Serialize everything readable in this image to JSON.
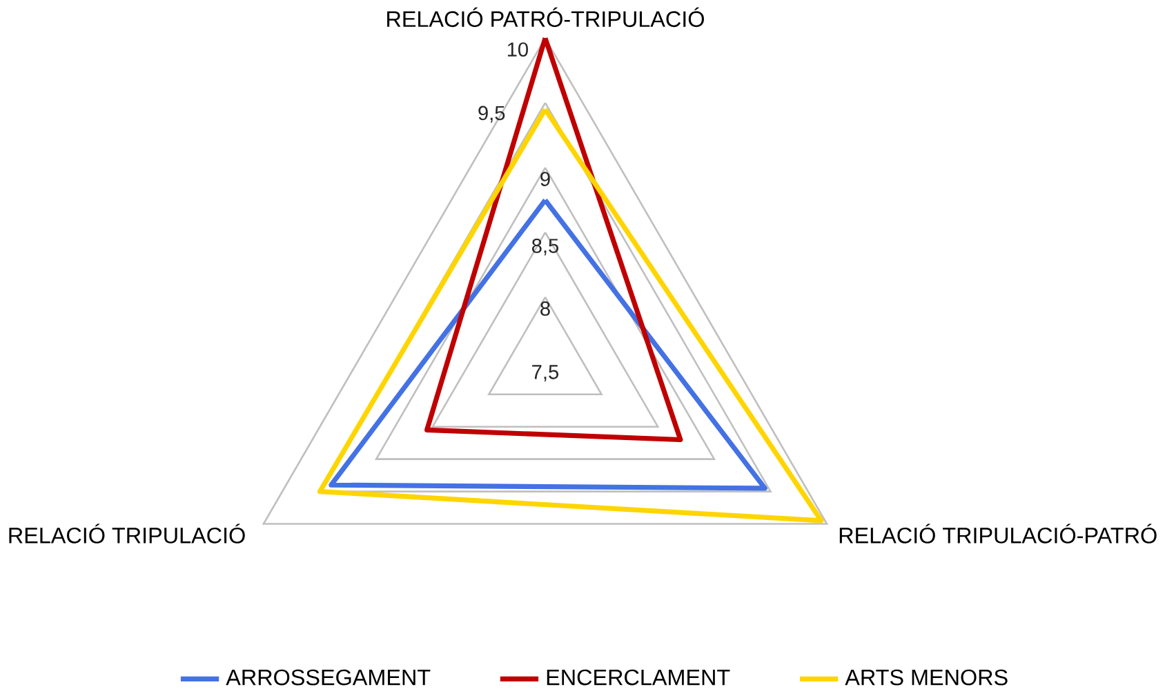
{
  "chart_data": {
    "type": "radar",
    "categories": [
      "RELACIÓ PATRÓ-TRIPULACIÓ",
      "RELACIÓ TRIPULACIÓ-PATRÓ",
      "RELACIÓ TRIPULACIÓ"
    ],
    "ylim": [
      7.5,
      10
    ],
    "yticks": [
      {
        "value": 7.5,
        "label": "7,5"
      },
      {
        "value": 8,
        "label": "8"
      },
      {
        "value": 8.5,
        "label": "8,5"
      },
      {
        "value": 9,
        "label": "9"
      },
      {
        "value": 9.5,
        "label": "9,5"
      },
      {
        "value": 10,
        "label": "10"
      }
    ],
    "grid": true,
    "legend": "bottom",
    "series": [
      {
        "name": "ARROSSEGAMENT",
        "color": "#4472e4",
        "values": [
          8.75,
          9.45,
          9.4
        ]
      },
      {
        "name": "ENCERCLAMENT",
        "color": "#c00000",
        "values": [
          10,
          8.7,
          8.55
        ]
      },
      {
        "name": "ARTS MENORS",
        "color": "#ffd500",
        "values": [
          9.45,
          9.95,
          9.5
        ]
      }
    ]
  }
}
